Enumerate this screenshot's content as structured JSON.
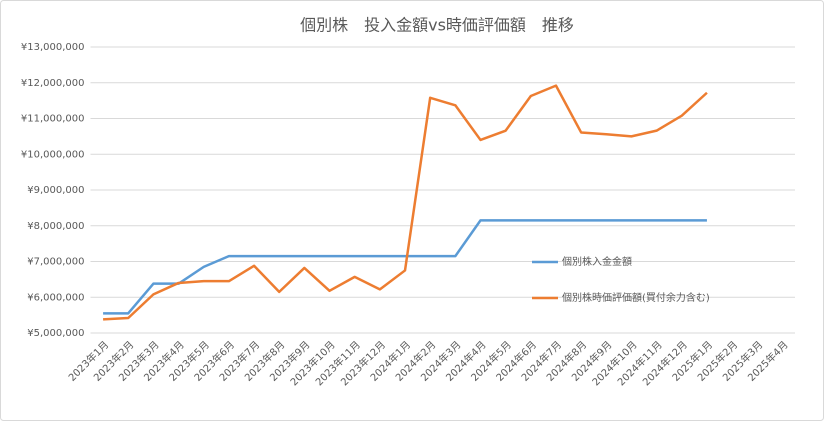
{
  "chart_data": {
    "type": "line",
    "title": "個別株　投入金額vs時価評価額　推移",
    "categories": [
      "2023年1月",
      "2023年2月",
      "2023年3月",
      "2023年4月",
      "2023年5月",
      "2023年6月",
      "2023年7月",
      "2023年8月",
      "2023年9月",
      "2023年10月",
      "2023年11月",
      "2023年12月",
      "2024年1月",
      "2024年2月",
      "2024年3月",
      "2024年4月",
      "2024年5月",
      "2024年6月",
      "2024年7月",
      "2024年8月",
      "2024年9月",
      "2024年10月",
      "2024年11月",
      "2024年12月",
      "2025年1月",
      "2025年2月",
      "2025年3月",
      "2025年4月"
    ],
    "series": [
      {
        "name": "個別株入金金額",
        "color": "#5b9bd5",
        "values": [
          5550000,
          5550000,
          6380000,
          6380000,
          6850000,
          7150000,
          7150000,
          7150000,
          7150000,
          7150000,
          7150000,
          7150000,
          7150000,
          7150000,
          7150000,
          8150000,
          8150000,
          8150000,
          8150000,
          8150000,
          8150000,
          8150000,
          8150000,
          8150000,
          8150000,
          null,
          null,
          null
        ]
      },
      {
        "name": "個別株時価評価額(買付余力含む)",
        "color": "#ed7d31",
        "values": [
          5380000,
          5420000,
          6080000,
          6400000,
          6450000,
          6450000,
          6880000,
          6150000,
          6820000,
          6180000,
          6570000,
          6220000,
          6750000,
          11580000,
          11370000,
          10400000,
          10660000,
          11630000,
          11920000,
          10610000,
          10560000,
          10500000,
          10660000,
          11080000,
          11720000,
          null,
          null,
          null
        ]
      }
    ],
    "ylim": [
      5000000,
      13000000
    ],
    "yticks": [
      {
        "value": 5000000,
        "label": "¥5,000,000"
      },
      {
        "value": 6000000,
        "label": "¥6,000,000"
      },
      {
        "value": 7000000,
        "label": "¥7,000,000"
      },
      {
        "value": 8000000,
        "label": "¥8,000,000"
      },
      {
        "value": 9000000,
        "label": "¥9,000,000"
      },
      {
        "value": 10000000,
        "label": "¥10,000,000"
      },
      {
        "value": 11000000,
        "label": "¥11,000,000"
      },
      {
        "value": 12000000,
        "label": "¥12,000,000"
      },
      {
        "value": 13000000,
        "label": "¥13,000,000"
      }
    ],
    "grid": true,
    "legend_position": "right"
  }
}
